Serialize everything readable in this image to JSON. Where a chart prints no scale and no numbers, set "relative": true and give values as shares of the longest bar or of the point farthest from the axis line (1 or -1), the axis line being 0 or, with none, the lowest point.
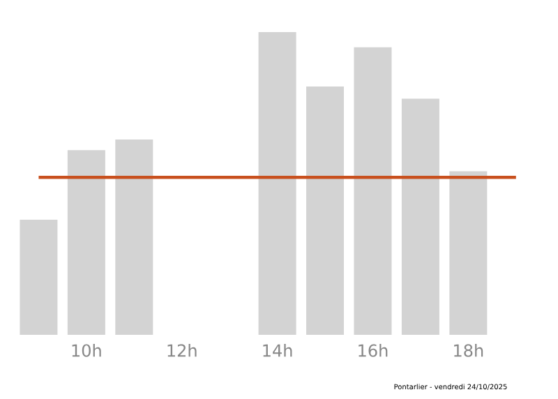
{
  "chart_data": {
    "type": "bar",
    "relative": true,
    "categories": [
      null,
      "10h",
      null,
      "12h",
      null,
      "14h",
      null,
      "16h",
      null,
      "18h",
      null
    ],
    "values": [
      0.38,
      0.61,
      0.645,
      0,
      0,
      1,
      0.82,
      0.95,
      0.78,
      0.54,
      0
    ],
    "color": "#d3d3d3",
    "ref_lines": [
      {
        "axis": "y",
        "value": 0.52,
        "color": "#c8501e"
      }
    ],
    "annotations": [
      "Pontarlier - vendredi 24/10/2025"
    ]
  }
}
